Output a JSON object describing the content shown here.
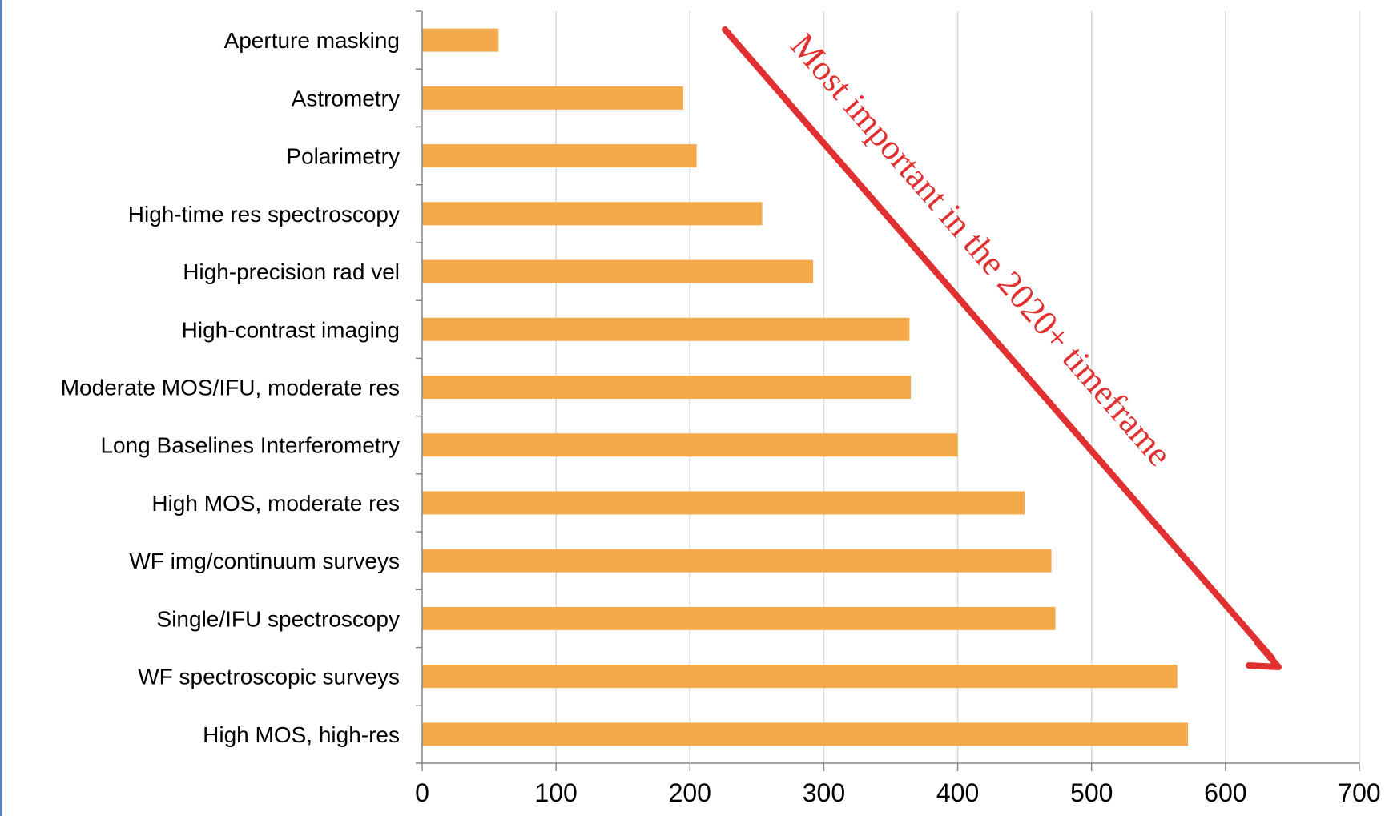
{
  "chart_data": {
    "type": "bar",
    "orientation": "horizontal",
    "categories": [
      "Aperture masking",
      "Astrometry",
      "Polarimetry",
      "High-time res spectroscopy",
      "High-precision rad vel",
      "High-contrast imaging",
      "Moderate MOS/IFU, moderate res",
      "Long Baselines Interferometry",
      "High MOS, moderate res",
      "WF img/continuum surveys",
      "Single/IFU spectroscopy",
      "WF spectroscopic surveys",
      "High MOS, high-res"
    ],
    "values": [
      57,
      195,
      205,
      254,
      292,
      364,
      365,
      400,
      450,
      470,
      473,
      564,
      572
    ],
    "xlim": [
      0,
      700
    ],
    "xticks": [
      "0",
      "100",
      "200",
      "300",
      "400",
      "500",
      "600",
      "700"
    ],
    "grid": "vertical",
    "legend": "none",
    "annotation": "Most important in the 2020+ timeframe"
  },
  "colors": {
    "bar": "#F4AA4A",
    "grid": "#D9D9D9",
    "axis": "#868686",
    "annotation": "#E03030",
    "border": "#4A86C8"
  }
}
